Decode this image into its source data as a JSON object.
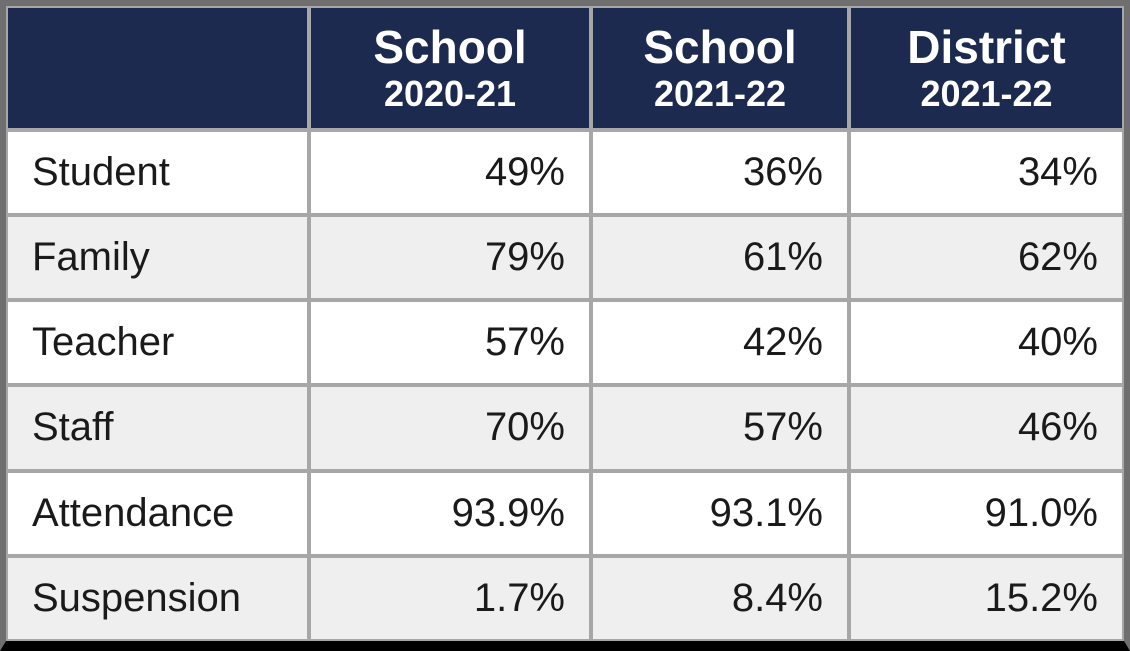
{
  "table": {
    "header_bg": "#1b2a4e",
    "header_fg": "#ffffff",
    "row_bg": "#ffffff",
    "row_alt_bg": "#efefef",
    "border_color": "#a7a7a7",
    "outer_border_color": "#6f6f6f",
    "bottom_border_color": "#000000",
    "text_color": "#1a1a1a",
    "label_fontsize": 40,
    "header_title_fontsize": 46,
    "header_sub_fontsize": 36,
    "columns": [
      {
        "title": "",
        "sub": ""
      },
      {
        "title": "School",
        "sub": "2020-21"
      },
      {
        "title": "School",
        "sub": "2021-22"
      },
      {
        "title": "District",
        "sub": "2021-22"
      }
    ],
    "rows": [
      {
        "label": "Student",
        "values": [
          "49%",
          "36%",
          "34%"
        ]
      },
      {
        "label": "Family",
        "values": [
          "79%",
          "61%",
          "62%"
        ]
      },
      {
        "label": "Teacher",
        "values": [
          "57%",
          "42%",
          "40%"
        ]
      },
      {
        "label": "Staff",
        "values": [
          "70%",
          "57%",
          "46%"
        ]
      },
      {
        "label": "Attendance",
        "values": [
          "93.9%",
          "93.1%",
          "91.0%"
        ]
      },
      {
        "label": "Suspension",
        "values": [
          "1.7%",
          "8.4%",
          "15.2%"
        ]
      }
    ]
  }
}
